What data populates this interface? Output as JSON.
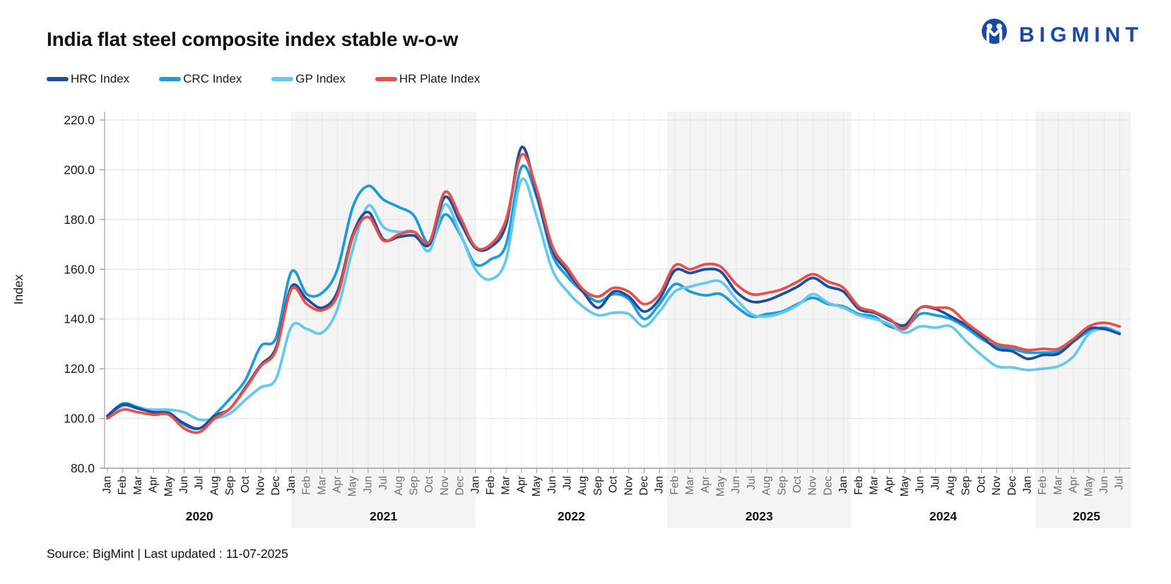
{
  "header": {
    "title": "India flat steel composite index stable w-o-w",
    "brand_name": "BIGMINT"
  },
  "footer": {
    "text": "Source: BigMint | Last updated : 11-07-2025"
  },
  "chart_data": {
    "type": "line",
    "title": "India flat steel composite index stable w-o-w",
    "ylabel": "Index",
    "ylim": [
      80,
      220
    ],
    "ytick_step": 20,
    "grid": true,
    "legend_position": "top-left",
    "x_unit": "month",
    "months": [
      "Jan",
      "Feb",
      "Mar",
      "Apr",
      "May",
      "Jun",
      "Jul",
      "Aug",
      "Sep",
      "Oct",
      "Nov",
      "Dec",
      "Jan",
      "Feb",
      "Mar",
      "Apr",
      "May",
      "Jun",
      "Jul",
      "Aug",
      "Sep",
      "Oct",
      "Nov",
      "Dec",
      "Jan",
      "Feb",
      "Mar",
      "Apr",
      "May",
      "Jun",
      "Jul",
      "Aug",
      "Sep",
      "Oct",
      "Nov",
      "Dec",
      "Jan",
      "Feb",
      "Mar",
      "Apr",
      "May",
      "Jun",
      "Jul",
      "Aug",
      "Sep",
      "Oct",
      "Nov",
      "Dec",
      "Jan",
      "Feb",
      "Mar",
      "Apr",
      "May",
      "Jun",
      "Jul",
      "Aug",
      "Sep",
      "Oct",
      "Nov",
      "Dec",
      "Jan",
      "Feb",
      "Mar",
      "Apr",
      "May",
      "Jun",
      "Jul"
    ],
    "years": [
      "2020",
      "2021",
      "2022",
      "2023",
      "2024",
      "2025"
    ],
    "year_boundaries_months": [
      0,
      12,
      24,
      36.5,
      48.5,
      60.5,
      67.2
    ],
    "shaded_year_bands": [
      [
        12,
        24
      ],
      [
        36.5,
        48.5
      ],
      [
        60.5,
        67.2
      ]
    ],
    "draw_order": [
      1,
      2,
      0,
      3
    ],
    "series": [
      {
        "name": "HRC Index",
        "color": "#1f4e9e",
        "values": [
          101,
          105.5,
          104,
          102.5,
          102,
          98,
          96,
          101,
          104,
          112.5,
          121.5,
          128.5,
          153,
          148,
          144.5,
          151,
          174,
          183,
          172,
          173,
          173.5,
          170,
          189,
          179,
          168.5,
          169,
          178,
          209,
          190,
          168,
          159,
          151,
          144.5,
          151,
          149,
          143,
          148,
          159.5,
          158.5,
          160,
          159,
          151,
          147,
          147.5,
          150,
          153,
          156.5,
          153,
          151,
          144,
          142.5,
          139.5,
          137.5,
          144.5,
          144,
          141,
          137.5,
          133,
          128,
          127,
          124,
          125.5,
          126,
          131,
          136,
          136,
          134
        ]
      },
      {
        "name": "CRC Index",
        "color": "#1e9cd8",
        "values": [
          101,
          106,
          104.5,
          103,
          102.5,
          97.5,
          96,
          101.5,
          108,
          115.5,
          129,
          132.5,
          159,
          150,
          150.5,
          160,
          185,
          193.5,
          188,
          185,
          181.5,
          170,
          182,
          174,
          162,
          164,
          170,
          201,
          189,
          166,
          157,
          151,
          147,
          150,
          148,
          140,
          146,
          154,
          151,
          149.5,
          150,
          145,
          141,
          142,
          143,
          146,
          148.5,
          146,
          145,
          142,
          141,
          137,
          136.5,
          142,
          141.5,
          140,
          136.5,
          132,
          129,
          128,
          126.5,
          126.5,
          127,
          131,
          135,
          136.5,
          134.5
        ]
      },
      {
        "name": "GP Index",
        "color": "#67c8ee",
        "values": [
          100.5,
          105,
          104,
          103.5,
          103.5,
          102.5,
          99.5,
          100,
          102,
          107.5,
          112.5,
          116,
          137,
          136,
          134.5,
          144,
          168,
          185.5,
          177,
          175,
          175,
          167.5,
          186,
          174.5,
          160,
          156,
          164,
          196,
          181,
          160,
          151,
          145,
          141.5,
          142.5,
          142,
          137,
          143,
          151,
          153,
          154.5,
          155,
          148,
          142,
          141,
          142.5,
          145.5,
          150,
          146.5,
          144.5,
          141.5,
          140,
          138,
          134.5,
          137,
          136.5,
          137,
          131,
          125.5,
          121,
          120.5,
          119.5,
          120,
          121,
          125,
          134,
          136,
          134.5
        ]
      },
      {
        "name": "HR Plate Index",
        "color": "#e8504b",
        "values": [
          100,
          103.5,
          102.5,
          101.5,
          101.5,
          96,
          94.5,
          100,
          104,
          112,
          121,
          127.5,
          152,
          146,
          143.5,
          149.5,
          173,
          181,
          171.5,
          174,
          175,
          171,
          191,
          181,
          169,
          170,
          180,
          206,
          192,
          169.5,
          160.5,
          152,
          149,
          152.5,
          151,
          146,
          150,
          161.5,
          160,
          162,
          161,
          154,
          150,
          150.5,
          152,
          155,
          158,
          155,
          152.5,
          145,
          143,
          140,
          136,
          144.5,
          144.5,
          144,
          138.5,
          134,
          130,
          129,
          127.5,
          128,
          128,
          132,
          137,
          138.5,
          137
        ]
      }
    ]
  }
}
